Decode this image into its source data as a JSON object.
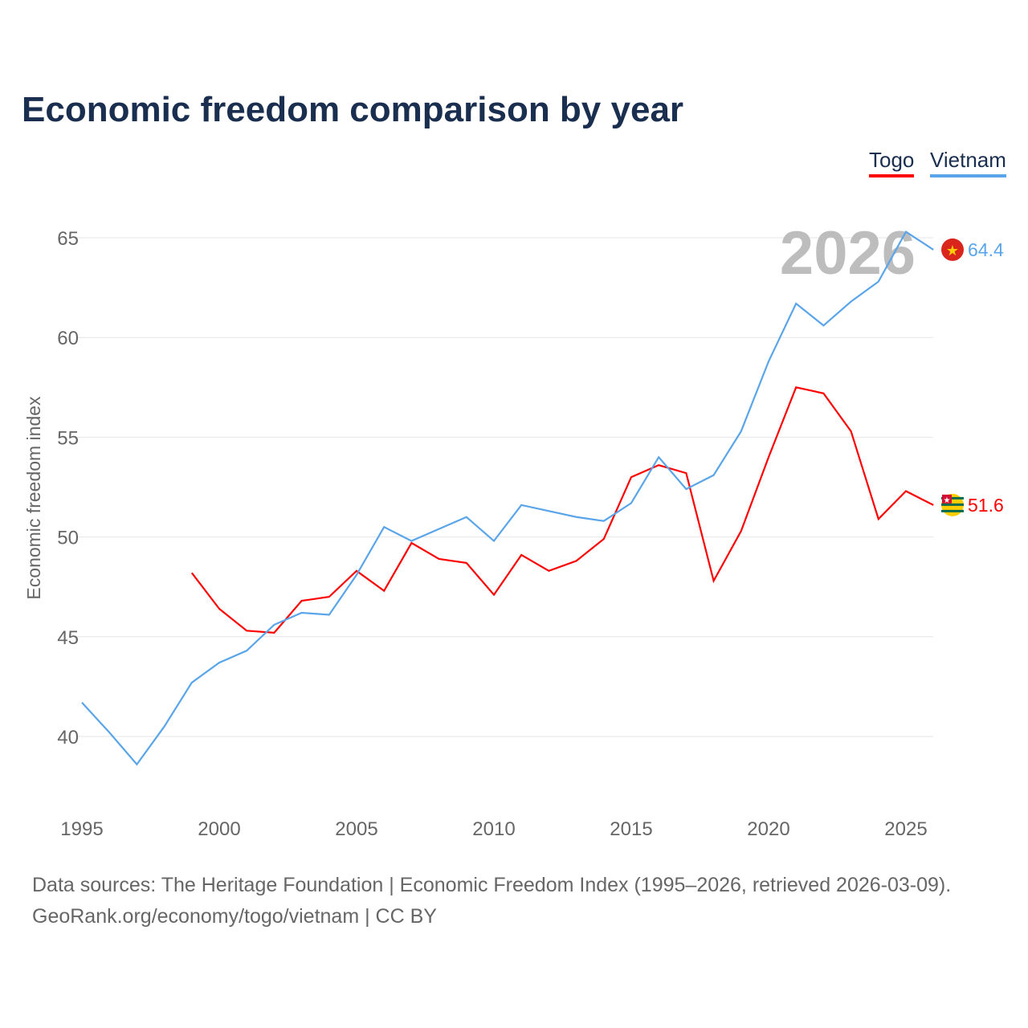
{
  "chart_data": {
    "type": "line",
    "title": "Economic freedom comparison by year",
    "ylabel": "Economic freedom index",
    "xlabel": "",
    "ylim": [
      36,
      67
    ],
    "xlim": [
      1995,
      2026
    ],
    "yticks": [
      40,
      45,
      50,
      55,
      60,
      65
    ],
    "xticks": [
      1995,
      2000,
      2005,
      2010,
      2015,
      2020,
      2025
    ],
    "grid": true,
    "legend_placement": "top-right",
    "year_annotation": "2026",
    "series": [
      {
        "name": "Togo",
        "color": "#ff0000",
        "end_label": "51.6",
        "x": [
          1999,
          2000,
          2001,
          2002,
          2003,
          2004,
          2005,
          2006,
          2007,
          2008,
          2009,
          2010,
          2011,
          2012,
          2013,
          2014,
          2015,
          2016,
          2017,
          2018,
          2019,
          2020,
          2021,
          2022,
          2023,
          2024,
          2025,
          2026
        ],
        "values": [
          48.2,
          46.4,
          45.3,
          45.2,
          46.8,
          47.0,
          48.3,
          47.3,
          49.7,
          48.9,
          48.7,
          47.1,
          49.1,
          48.3,
          48.8,
          49.9,
          53.0,
          53.6,
          53.2,
          47.8,
          50.3,
          54.0,
          57.5,
          57.2,
          55.3,
          50.9,
          52.3,
          51.6
        ]
      },
      {
        "name": "Vietnam",
        "color": "#5aa5ea",
        "end_label": "64.4",
        "x": [
          1995,
          1996,
          1997,
          1998,
          1999,
          2000,
          2001,
          2002,
          2003,
          2004,
          2005,
          2006,
          2007,
          2008,
          2009,
          2010,
          2011,
          2012,
          2013,
          2014,
          2015,
          2016,
          2017,
          2018,
          2019,
          2020,
          2021,
          2022,
          2023,
          2024,
          2025,
          2026
        ],
        "values": [
          41.7,
          40.2,
          38.6,
          40.5,
          42.7,
          43.7,
          44.3,
          45.6,
          46.2,
          46.1,
          48.1,
          50.5,
          49.8,
          50.4,
          51.0,
          49.8,
          51.6,
          51.3,
          51.0,
          50.8,
          51.7,
          54.0,
          52.4,
          53.1,
          55.3,
          58.8,
          61.7,
          60.6,
          61.8,
          62.8,
          65.3,
          64.4
        ]
      }
    ]
  },
  "footer": {
    "sources": "Data sources: The Heritage Foundation | Economic Freedom Index (1995–2026, retrieved 2026-03-09).",
    "credit": "GeoRank.org/economy/togo/vietnam | CC BY"
  }
}
